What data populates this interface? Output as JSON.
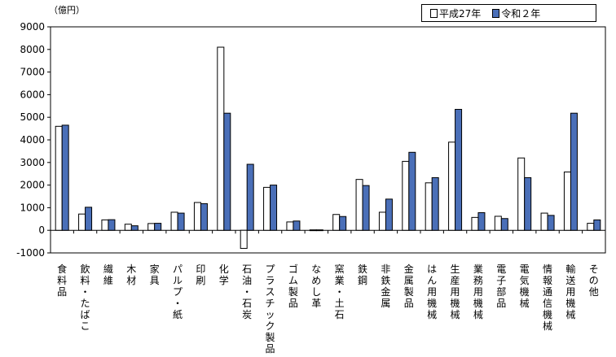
{
  "chart_data": {
    "type": "bar",
    "unit": "（億円）",
    "categories": [
      "食料品",
      "飲料・たばこ",
      "繊維",
      "木材",
      "家具",
      "パルプ・紙",
      "印刷",
      "化学",
      "石油・石炭",
      "プラスチック製品",
      "ゴム製品",
      "なめし革",
      "窯業・土石",
      "鉄鋼",
      "非鉄金属",
      "金属製品",
      "はん用機械",
      "生産用機械",
      "業務用機械",
      "電子部品",
      "電気機械",
      "情報通信機械",
      "輸送用機械",
      "その他"
    ],
    "series": [
      {
        "name": "平成27年",
        "color": "#ffffff",
        "values": [
          4600,
          720,
          460,
          270,
          300,
          800,
          1230,
          8100,
          -800,
          1900,
          370,
          20,
          700,
          2250,
          800,
          3050,
          2100,
          3900,
          570,
          620,
          3200,
          760,
          2580,
          310
        ]
      },
      {
        "name": "令和２年",
        "color": "#4a6fb8",
        "values": [
          4650,
          1020,
          470,
          200,
          310,
          760,
          1180,
          5180,
          2920,
          2000,
          410,
          20,
          610,
          1980,
          1380,
          3450,
          2330,
          5350,
          780,
          520,
          2330,
          660,
          5180,
          460
        ]
      }
    ],
    "ylim": [
      -1000,
      9000
    ],
    "yticks": [
      -1000,
      0,
      1000,
      2000,
      3000,
      4000,
      5000,
      6000,
      7000,
      8000,
      9000
    ],
    "ytick_labels": [
      "-1000",
      "0",
      "1000",
      "2000",
      "3000",
      "4000",
      "5000",
      "6000",
      "7000",
      "8000",
      "9000"
    ],
    "legend_position": "top-right",
    "grid": false
  }
}
